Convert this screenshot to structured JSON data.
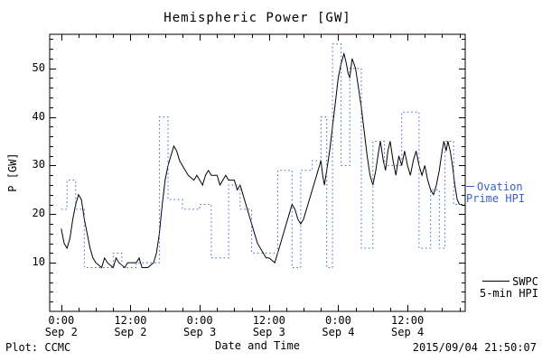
{
  "footer": {
    "left": "Plot: CCMC",
    "right": "2015/09/04 21:50:07"
  },
  "legend": {
    "ovation": {
      "line1": "Ovation",
      "line2": "Prime HPI",
      "color": "#3a5fcd"
    },
    "swpc": {
      "line1": "SWPC",
      "line2": "5-min HPI",
      "color": "#000000"
    }
  },
  "chart_data": {
    "type": "line",
    "title": "Hemispheric Power [GW]",
    "xlabel": "Date and Time",
    "ylabel": "P [GW]",
    "ylim": [
      0,
      57
    ],
    "xlim_hours": [
      -2,
      70
    ],
    "x_epoch": "hours since Sep 2 00:00",
    "grid": false,
    "yticks": [
      10,
      20,
      30,
      40,
      50
    ],
    "x_minor_step_hours": 3,
    "y_minor_step": 2,
    "xticks": [
      {
        "hour": 0,
        "time": "0:00",
        "date": "Sep 2"
      },
      {
        "hour": 12,
        "time": "12:00",
        "date": "Sep 2"
      },
      {
        "hour": 24,
        "time": "0:00",
        "date": "Sep 3"
      },
      {
        "hour": 36,
        "time": "12:00",
        "date": "Sep 3"
      },
      {
        "hour": 48,
        "time": "0:00",
        "date": "Sep 4"
      },
      {
        "hour": 60,
        "time": "12:00",
        "date": "Sep 4"
      }
    ],
    "series": [
      {
        "name": "SWPC 5-min HPI",
        "style": "solid",
        "color": "#000000",
        "points": [
          [
            0,
            17
          ],
          [
            0.5,
            14
          ],
          [
            1,
            13
          ],
          [
            1.5,
            15
          ],
          [
            2,
            19
          ],
          [
            2.5,
            22
          ],
          [
            3,
            24
          ],
          [
            3.5,
            23
          ],
          [
            4,
            19
          ],
          [
            4.5,
            16
          ],
          [
            5,
            13
          ],
          [
            5.5,
            11
          ],
          [
            6,
            10
          ],
          [
            7,
            9
          ],
          [
            7.5,
            11
          ],
          [
            8,
            10
          ],
          [
            9,
            9
          ],
          [
            9.5,
            11
          ],
          [
            10,
            10
          ],
          [
            11,
            9
          ],
          [
            11.5,
            10
          ],
          [
            12,
            10
          ],
          [
            13,
            10
          ],
          [
            13.5,
            11
          ],
          [
            14,
            9
          ],
          [
            15,
            9
          ],
          [
            16,
            10
          ],
          [
            16.5,
            12
          ],
          [
            17,
            16
          ],
          [
            17.5,
            22
          ],
          [
            18,
            27
          ],
          [
            18.5,
            30
          ],
          [
            19,
            32
          ],
          [
            19.5,
            34
          ],
          [
            20,
            33
          ],
          [
            20.5,
            31
          ],
          [
            21,
            30
          ],
          [
            22,
            28
          ],
          [
            23,
            27
          ],
          [
            23.5,
            28
          ],
          [
            24,
            27
          ],
          [
            24.5,
            26
          ],
          [
            25,
            28
          ],
          [
            25.5,
            29
          ],
          [
            26,
            28
          ],
          [
            27,
            28
          ],
          [
            27.5,
            26
          ],
          [
            28,
            27
          ],
          [
            28.5,
            28
          ],
          [
            29,
            27
          ],
          [
            30,
            27
          ],
          [
            30.5,
            25
          ],
          [
            31,
            26
          ],
          [
            31.5,
            24
          ],
          [
            32,
            22
          ],
          [
            33,
            18
          ],
          [
            33.5,
            16
          ],
          [
            34,
            14
          ],
          [
            35,
            12
          ],
          [
            35.5,
            11
          ],
          [
            36,
            11
          ],
          [
            37,
            10
          ],
          [
            37.5,
            12
          ],
          [
            38,
            14
          ],
          [
            39,
            18
          ],
          [
            39.5,
            20
          ],
          [
            40,
            22
          ],
          [
            40.5,
            21
          ],
          [
            41,
            19
          ],
          [
            41.5,
            18
          ],
          [
            42,
            19
          ],
          [
            42.5,
            21
          ],
          [
            43,
            23
          ],
          [
            43.5,
            25
          ],
          [
            44,
            27
          ],
          [
            44.5,
            29
          ],
          [
            45,
            31
          ],
          [
            45.3,
            28
          ],
          [
            45.6,
            26
          ],
          [
            46,
            29
          ],
          [
            46.5,
            33
          ],
          [
            47,
            38
          ],
          [
            47.5,
            43
          ],
          [
            48,
            48
          ],
          [
            48.5,
            51
          ],
          [
            49,
            53
          ],
          [
            49.4,
            51
          ],
          [
            49.7,
            49
          ],
          [
            50,
            48
          ],
          [
            50.4,
            52
          ],
          [
            51,
            50
          ],
          [
            51.5,
            46
          ],
          [
            52,
            42
          ],
          [
            52.5,
            37
          ],
          [
            53,
            32
          ],
          [
            53.5,
            28
          ],
          [
            54,
            26
          ],
          [
            54.5,
            29
          ],
          [
            55,
            33
          ],
          [
            55.3,
            35
          ],
          [
            55.8,
            31
          ],
          [
            56.2,
            29
          ],
          [
            56.6,
            33
          ],
          [
            57,
            35
          ],
          [
            57.5,
            31
          ],
          [
            58,
            28
          ],
          [
            58.5,
            32
          ],
          [
            59,
            30
          ],
          [
            59.5,
            33
          ],
          [
            60,
            30
          ],
          [
            60.5,
            28
          ],
          [
            61,
            31
          ],
          [
            61.5,
            33
          ],
          [
            62,
            30
          ],
          [
            62.5,
            28
          ],
          [
            63,
            30
          ],
          [
            63.5,
            27
          ],
          [
            64,
            25
          ],
          [
            64.5,
            24
          ],
          [
            65,
            26
          ],
          [
            65.5,
            29
          ],
          [
            66,
            33
          ],
          [
            66.3,
            35
          ],
          [
            66.7,
            33
          ],
          [
            67,
            35
          ],
          [
            67.4,
            33
          ],
          [
            67.8,
            30
          ],
          [
            68.2,
            26
          ],
          [
            68.6,
            23
          ],
          [
            69,
            22
          ],
          [
            69.5,
            22
          ]
        ]
      },
      {
        "name": "Ovation Prime HPI",
        "style": "dotted-step",
        "color": "#3a5fcd",
        "points": [
          [
            0,
            21
          ],
          [
            1,
            27
          ],
          [
            2.5,
            21
          ],
          [
            4,
            9
          ],
          [
            9,
            12
          ],
          [
            10.5,
            9
          ],
          [
            13,
            10
          ],
          [
            17,
            40
          ],
          [
            18.5,
            23
          ],
          [
            21,
            21
          ],
          [
            24,
            22
          ],
          [
            26,
            11
          ],
          [
            29,
            26
          ],
          [
            31,
            21
          ],
          [
            33,
            12
          ],
          [
            37.5,
            29
          ],
          [
            40,
            9
          ],
          [
            41.5,
            29
          ],
          [
            43.5,
            31
          ],
          [
            45,
            40
          ],
          [
            46,
            9
          ],
          [
            47,
            55
          ],
          [
            48.5,
            30
          ],
          [
            50,
            50
          ],
          [
            52,
            13
          ],
          [
            54,
            35
          ],
          [
            56,
            30
          ],
          [
            59,
            41
          ],
          [
            62,
            13
          ],
          [
            64,
            25
          ],
          [
            65.5,
            13
          ],
          [
            66.5,
            35
          ],
          [
            68,
            22
          ],
          [
            69.8,
            22
          ]
        ]
      }
    ]
  }
}
